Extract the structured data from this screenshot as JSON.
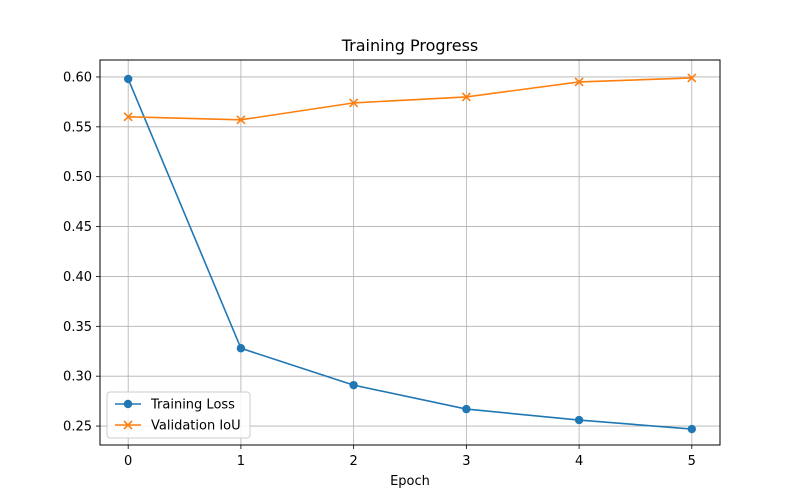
{
  "chart_data": {
    "type": "line",
    "title": "Training Progress",
    "xlabel": "Epoch",
    "ylabel": "",
    "x": [
      0,
      1,
      2,
      3,
      4,
      5
    ],
    "xlim": [
      -0.25,
      5.25
    ],
    "ylim": [
      0.231,
      0.617
    ],
    "xticks": [
      0,
      1,
      2,
      3,
      4,
      5
    ],
    "xtick_labels": [
      "0",
      "1",
      "2",
      "3",
      "4",
      "5"
    ],
    "yticks": [
      0.25,
      0.3,
      0.35,
      0.4,
      0.45,
      0.5,
      0.55,
      0.6
    ],
    "ytick_labels": [
      "0.25",
      "0.30",
      "0.35",
      "0.40",
      "0.45",
      "0.50",
      "0.55",
      "0.60"
    ],
    "grid": true,
    "legend_position": "lower-left",
    "series": [
      {
        "name": "Training Loss",
        "color": "#1f77b4",
        "marker": "circle",
        "values": [
          0.598,
          0.328,
          0.291,
          0.267,
          0.256,
          0.247
        ]
      },
      {
        "name": "Validation IoU",
        "color": "#ff7f0e",
        "marker": "x",
        "values": [
          0.56,
          0.557,
          0.574,
          0.58,
          0.595,
          0.599
        ]
      }
    ]
  }
}
